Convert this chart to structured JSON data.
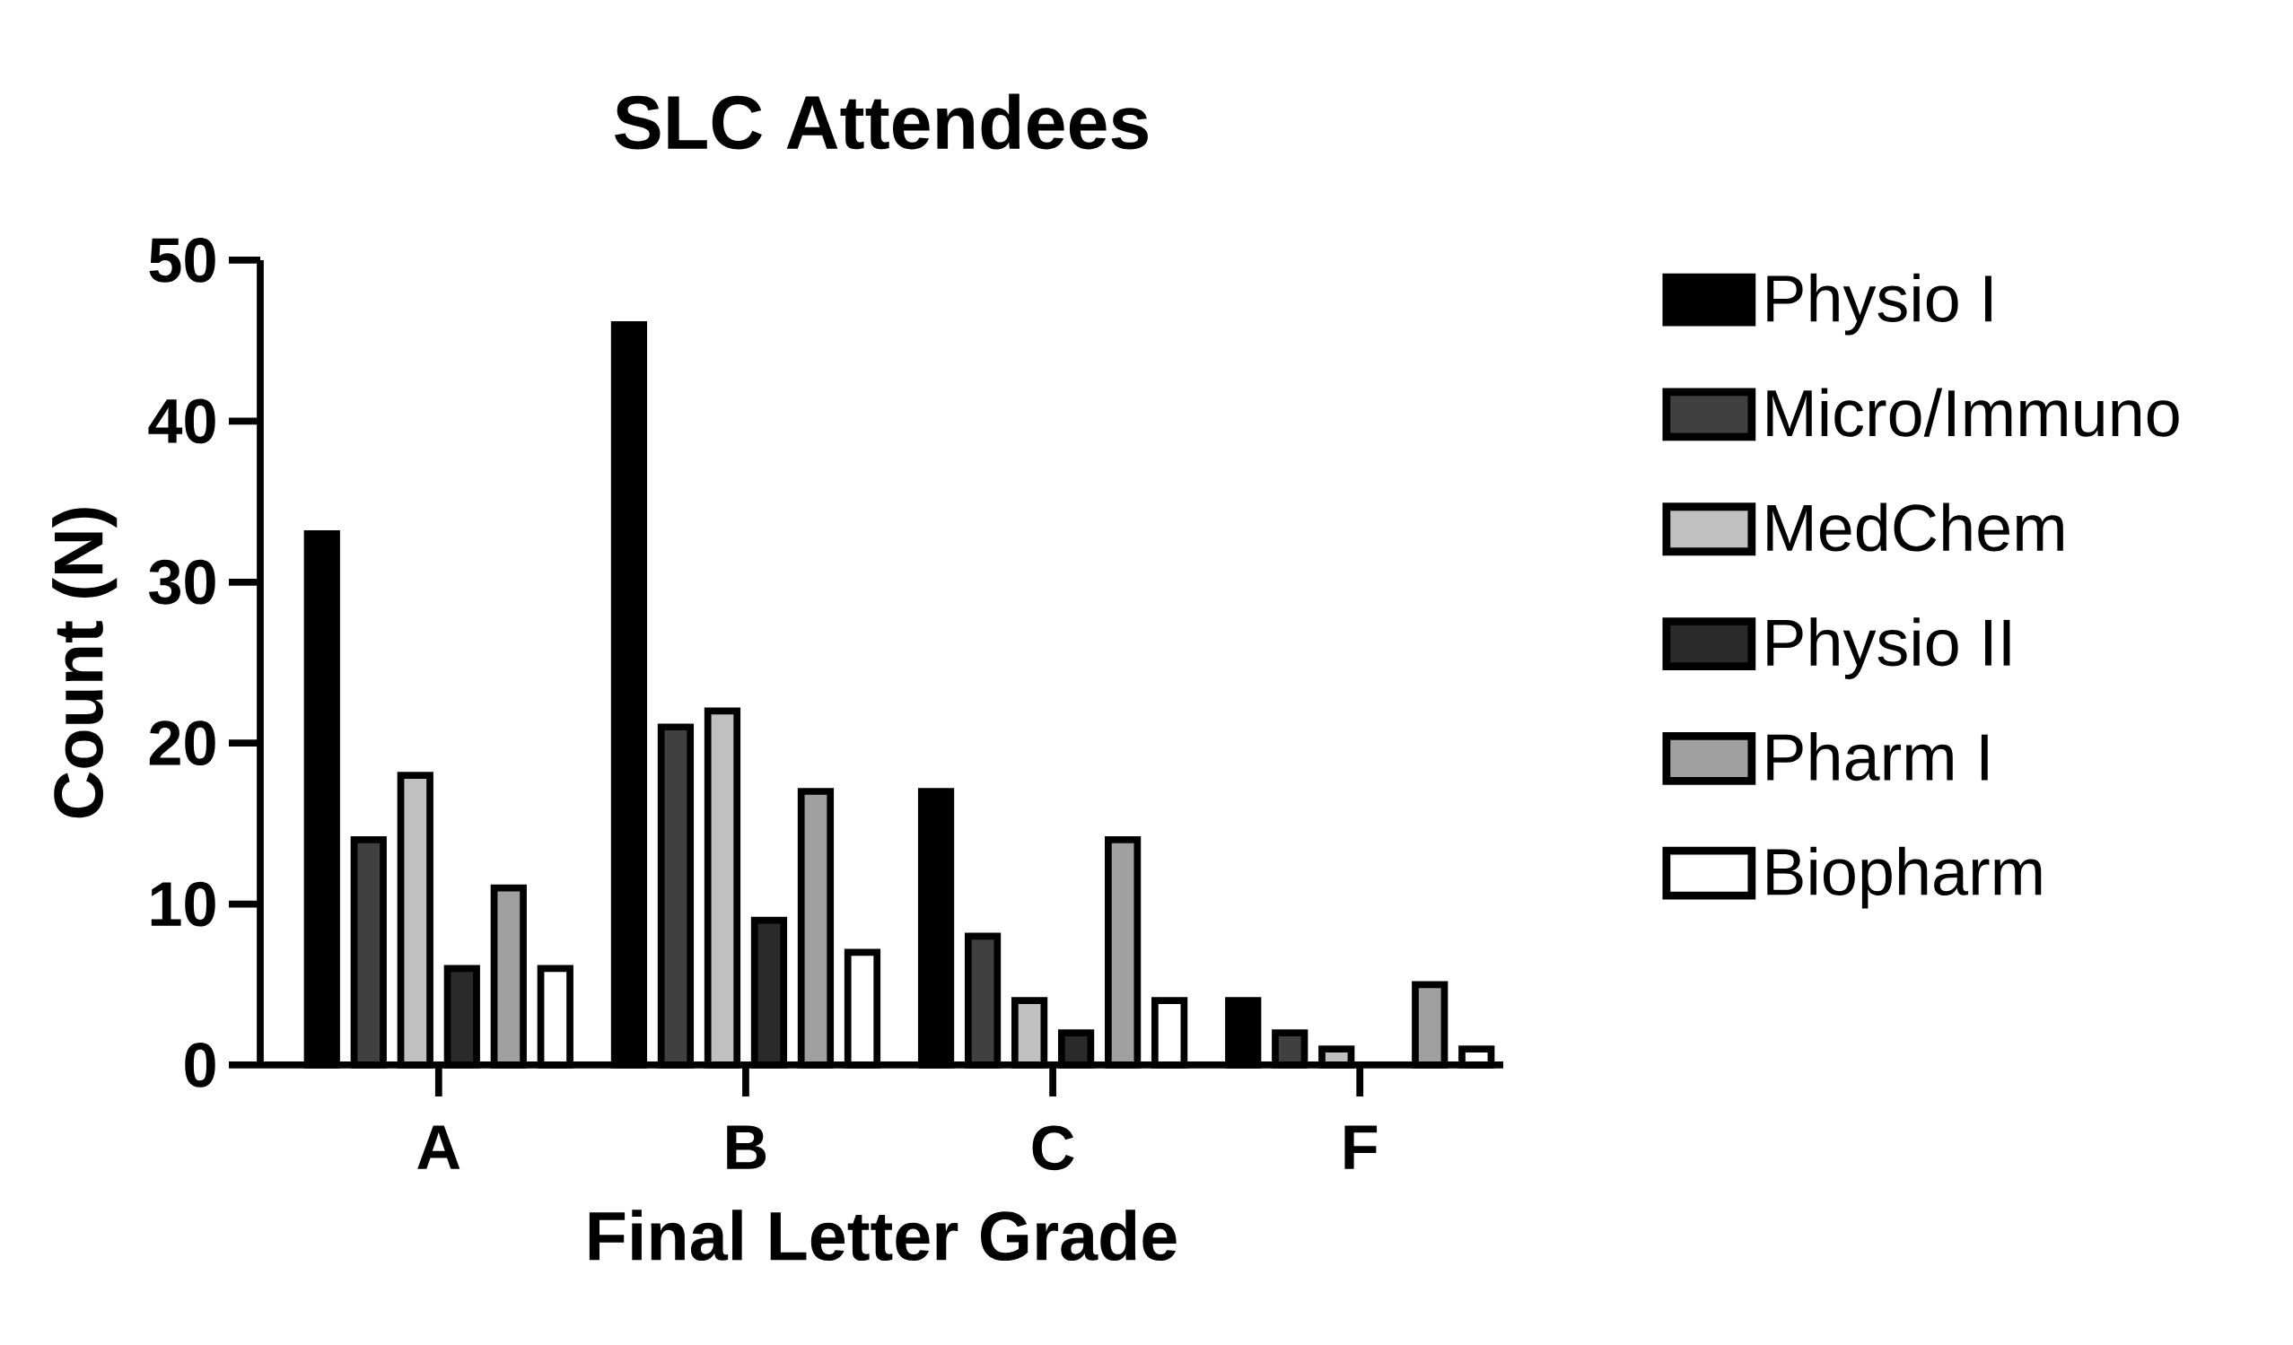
{
  "chart_data": {
    "type": "bar",
    "title": "SLC Attendees",
    "xlabel": "Final Letter Grade",
    "ylabel": "Count (N)",
    "categories": [
      "A",
      "B",
      "C",
      "F"
    ],
    "series": [
      {
        "name": "Physio I",
        "color": "#000000",
        "values": [
          33,
          46,
          17,
          4
        ]
      },
      {
        "name": "Micro/Immuno",
        "color": "#404040",
        "values": [
          14,
          21,
          8,
          2
        ]
      },
      {
        "name": "MedChem",
        "color": "#c0c0c0",
        "values": [
          18,
          22,
          4,
          1
        ]
      },
      {
        "name": "Physio II",
        "color": "#2a2a2a",
        "values": [
          6,
          9,
          2,
          null
        ]
      },
      {
        "name": "Pharm I",
        "color": "#a0a0a0",
        "values": [
          11,
          17,
          14,
          5
        ]
      },
      {
        "name": "Biopharm",
        "color": "#ffffff",
        "values": [
          6,
          7,
          4,
          1
        ]
      }
    ],
    "ylim": [
      0,
      50
    ],
    "yticks": [
      0,
      10,
      20,
      30,
      40,
      50
    ],
    "grid": false,
    "legend": "top right"
  }
}
